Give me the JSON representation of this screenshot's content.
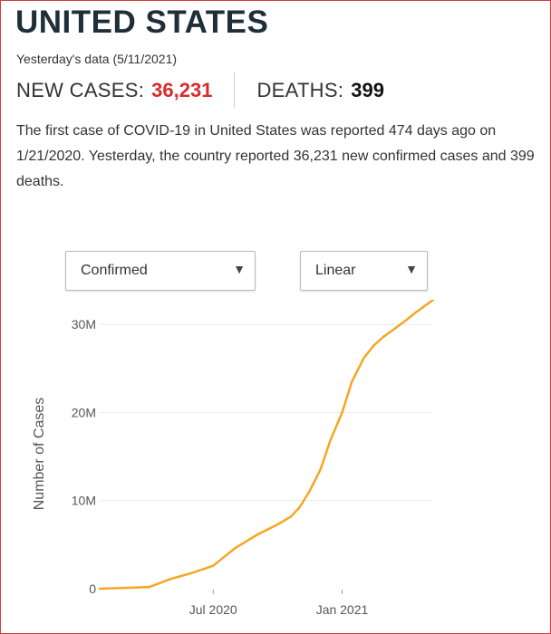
{
  "country": {
    "title": "UNITED STATES"
  },
  "data_date": "Yesterday's data (5/11/2021)",
  "stats": {
    "new_cases_label": "NEW CASES:",
    "new_cases_value": "36,231",
    "deaths_label": "DEATHS:",
    "deaths_value": "399"
  },
  "description": "The first case of COVID-19 in United States was reported 474 days ago on 1/21/2020. Yesterday, the country reported 36,231 new confirmed cases and 399 deaths.",
  "controls": {
    "metric_select": {
      "selected": "Confirmed"
    },
    "scale_select": {
      "selected": "Linear"
    }
  },
  "colors": {
    "accent_red": "#d92b2b",
    "line": "#f5a623",
    "border": "#d23b3b"
  },
  "chart_data": {
    "type": "line",
    "title": "",
    "xlabel": "",
    "ylabel": "Number of Cases",
    "x_ticks": [
      "Jul 2020",
      "Jan 2021"
    ],
    "y_ticks": [
      "0",
      "10M",
      "20M",
      "30M"
    ],
    "ylim": [
      0,
      32800000
    ],
    "xlim": [
      "2020-01-21",
      "2021-05-11"
    ],
    "grid": "horizontal",
    "series": [
      {
        "x": [
          "2020-01-21",
          "2020-03-01",
          "2020-04-01",
          "2020-05-01",
          "2020-06-01",
          "2020-07-01",
          "2020-08-01",
          "2020-09-01",
          "2020-10-01",
          "2020-10-20",
          "2020-11-01",
          "2020-11-15",
          "2020-12-01",
          "2020-12-15",
          "2021-01-01",
          "2021-01-15",
          "2021-02-01",
          "2021-02-15",
          "2021-03-01",
          "2021-03-15",
          "2021-04-01",
          "2021-04-15",
          "2021-05-11"
        ],
        "y": [
          0,
          100000,
          200000,
          1100000,
          1800000,
          2600000,
          4600000,
          6100000,
          7300000,
          8200000,
          9200000,
          11000000,
          13500000,
          16800000,
          20000000,
          23500000,
          26200000,
          27600000,
          28600000,
          29400000,
          30400000,
          31300000,
          32800000
        ]
      }
    ]
  }
}
